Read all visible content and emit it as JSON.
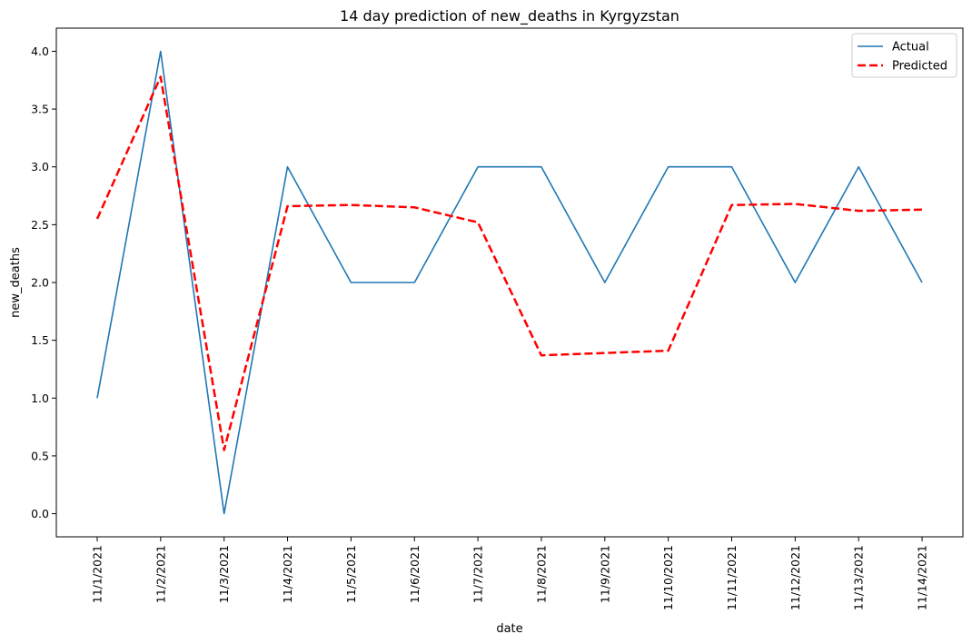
{
  "chart_data": {
    "type": "line",
    "title": "14 day prediction of new_deaths in Kyrgyzstan",
    "xlabel": "date",
    "ylabel": "new_deaths",
    "categories": [
      "11/1/2021",
      "11/2/2021",
      "11/3/2021",
      "11/4/2021",
      "11/5/2021",
      "11/6/2021",
      "11/7/2021",
      "11/8/2021",
      "11/9/2021",
      "11/10/2021",
      "11/11/2021",
      "11/12/2021",
      "11/13/2021",
      "11/14/2021"
    ],
    "ylim": [
      -0.2,
      4.2
    ],
    "yticks": [
      0.0,
      0.5,
      1.0,
      1.5,
      2.0,
      2.5,
      3.0,
      3.5,
      4.0
    ],
    "ytick_labels": [
      "0.0",
      "0.5",
      "1.0",
      "1.5",
      "2.0",
      "2.5",
      "3.0",
      "3.5",
      "4.0"
    ],
    "grid": false,
    "legend_position": "top-right",
    "series": [
      {
        "name": "Actual",
        "color": "#1f77b4",
        "style": "solid",
        "values": [
          1,
          4,
          0,
          3,
          2,
          2,
          3,
          3,
          2,
          3,
          3,
          2,
          3,
          2
        ]
      },
      {
        "name": "Predicted",
        "color": "#ff0000",
        "style": "dashed",
        "values": [
          2.55,
          3.78,
          0.55,
          2.66,
          2.67,
          2.65,
          2.52,
          1.37,
          1.39,
          1.41,
          2.67,
          2.68,
          2.62,
          2.63
        ]
      }
    ]
  }
}
